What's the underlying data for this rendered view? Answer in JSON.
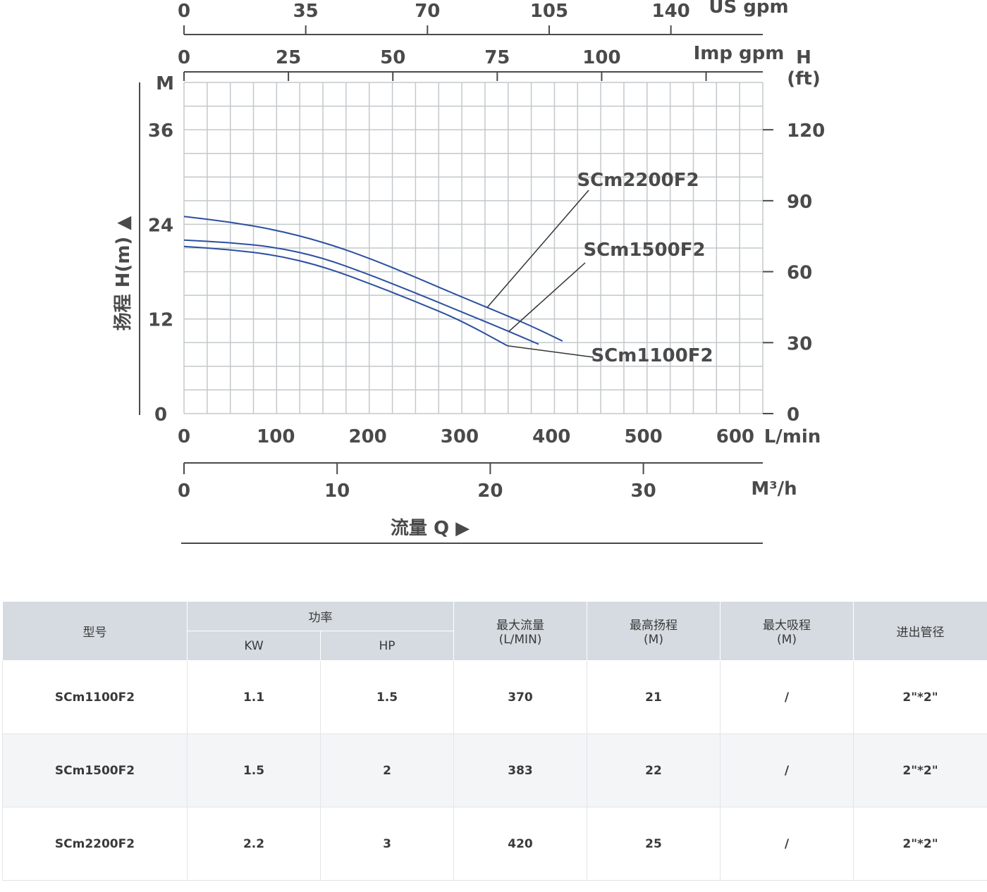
{
  "chart_data": {
    "type": "line",
    "ylabel": "扬程 H(m) ▲",
    "xlabel": "流量 Q ▶",
    "x_unit": "L/min",
    "y_unit": "M",
    "xlim": [
      0,
      630
    ],
    "ylim": [
      0,
      42
    ],
    "x_ticks": [
      "0",
      "100",
      "200",
      "300",
      "400",
      "500",
      "600"
    ],
    "y_ticks": [
      "0",
      "12",
      "24",
      "36"
    ],
    "grid": true,
    "secondary_axes": {
      "m3h": {
        "unit": "M³/h",
        "ticks": [
          "0",
          "10",
          "20",
          "30"
        ]
      },
      "imp_gpm": {
        "unit": "Imp gpm",
        "ticks": [
          "0",
          "25",
          "50",
          "75",
          "100"
        ]
      },
      "us_gpm": {
        "unit": "US gpm",
        "ticks": [
          "0",
          "35",
          "70",
          "105",
          "140"
        ]
      },
      "h_ft": {
        "unit": "H\n(ft)",
        "ticks": [
          "0",
          "30",
          "60",
          "90",
          "120"
        ]
      }
    },
    "series": [
      {
        "name": "SCm2200F2",
        "x": [
          0,
          50,
          100,
          150,
          200,
          250,
          300,
          350,
          380,
          412
        ],
        "y": [
          25.0,
          24.3,
          23.3,
          21.8,
          19.8,
          17.4,
          14.9,
          12.5,
          11.0,
          9.2
        ]
      },
      {
        "name": "SCm1500F2",
        "x": [
          0,
          50,
          100,
          150,
          200,
          250,
          300,
          350,
          386
        ],
        "y": [
          22.0,
          21.7,
          21.1,
          19.8,
          17.7,
          15.4,
          13.0,
          10.6,
          8.8
        ]
      },
      {
        "name": "SCm1100F2",
        "x": [
          0,
          50,
          100,
          150,
          200,
          250,
          300,
          352
        ],
        "y": [
          21.2,
          20.8,
          20.1,
          18.7,
          16.6,
          14.3,
          11.9,
          8.6
        ]
      }
    ]
  },
  "colors": {
    "curve": "#2b4fa0",
    "grid": "#c3c8cc",
    "axis": "#4a4a4a",
    "header_bg": "#d5dbe0",
    "row_alt_bg": "#f4f5f7"
  },
  "table": {
    "headers": {
      "model": "型号",
      "power": "功率",
      "kw": "KW",
      "hp": "HP",
      "max_flow": "最大流量\n(L/MIN)",
      "max_head": "最高扬程\n(M)",
      "max_suction": "最大吸程\n(M)",
      "pipe": "进出管径"
    },
    "rows": [
      {
        "model": "SCm1100F2",
        "kw": "1.1",
        "hp": "1.5",
        "max_flow": "370",
        "max_head": "21",
        "max_suction": "/",
        "pipe": "2\"*2\""
      },
      {
        "model": "SCm1500F2",
        "kw": "1.5",
        "hp": "2",
        "max_flow": "383",
        "max_head": "22",
        "max_suction": "/",
        "pipe": "2\"*2\""
      },
      {
        "model": "SCm2200F2",
        "kw": "2.2",
        "hp": "3",
        "max_flow": "420",
        "max_head": "25",
        "max_suction": "/",
        "pipe": "2\"*2\""
      }
    ]
  }
}
